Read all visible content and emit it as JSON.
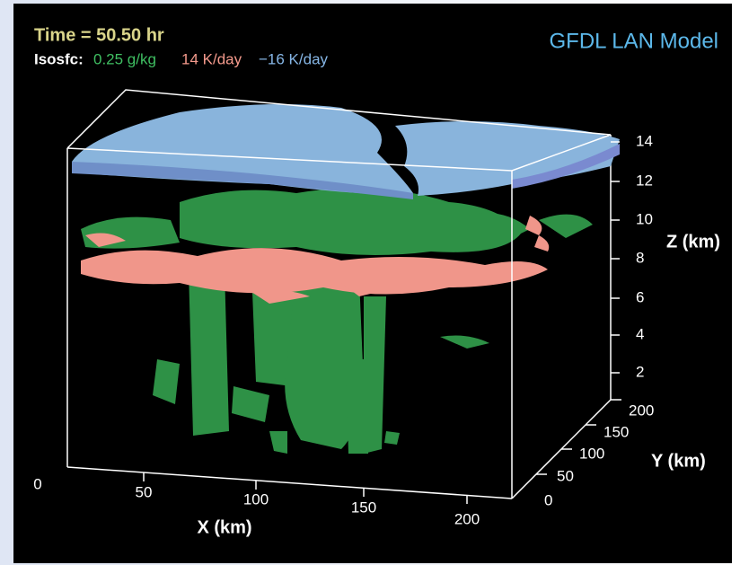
{
  "header": {
    "time": "Time = 50.50 hr",
    "isosurface_label": "Isosfc:",
    "isosurfaces": [
      "0.25 g/kg",
      "14 K/day",
      "−16 K/day"
    ],
    "model": "GFDL LAN Model"
  },
  "axes": {
    "z": {
      "label": "Z (km)",
      "ticks": [
        "14",
        "12",
        "10",
        "8",
        "6",
        "4",
        "2"
      ]
    },
    "x": {
      "label": "X (km)",
      "ticks": [
        "0",
        "50",
        "100",
        "150",
        "200"
      ]
    },
    "y": {
      "label": "Y (km)",
      "ticks": [
        "200",
        "150",
        "100",
        "50",
        "0"
      ]
    }
  }
}
